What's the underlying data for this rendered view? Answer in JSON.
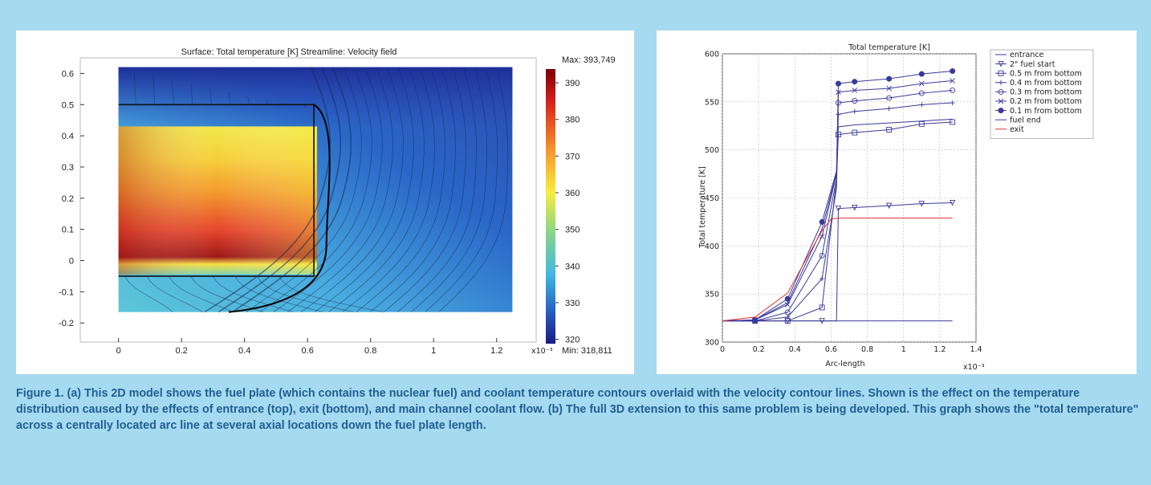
{
  "chart_data": [
    {
      "type": "heatmap",
      "title": "Surface: Total temperature [K]    Streamline: Velocity field",
      "xlabel": "",
      "ylabel": "",
      "x_ticks": [
        "0",
        "0.2",
        "0.4",
        "0.6",
        "0.8",
        "1",
        "1.2"
      ],
      "y_ticks": [
        "-0.2",
        "-0.1",
        "0",
        "0.1",
        "0.2",
        "0.3",
        "0.4",
        "0.5",
        "0.6"
      ],
      "x_exponent": "x10⁻³",
      "xlim": [
        -0.05,
        1.3
      ],
      "ylim": [
        -0.22,
        0.65
      ],
      "colorbar": {
        "max_label": "Max: 393,749",
        "min_label": "Min: 318,811",
        "ticks": [
          "390",
          "380",
          "370",
          "360",
          "350",
          "340",
          "330",
          "320"
        ],
        "range": [
          318.811,
          393.749
        ]
      }
    },
    {
      "type": "line",
      "title": "Total temperature [K]",
      "xlabel": "Arc-length",
      "ylabel": "Total temperature [K]",
      "x_exponent": "x10⁻³",
      "xlim": [
        0,
        1.4
      ],
      "ylim": [
        300,
        600
      ],
      "x_ticks": [
        "0",
        "0.2",
        "0.4",
        "0.6",
        "0.8",
        "1",
        "1.2",
        "1.4"
      ],
      "y_ticks": [
        "300",
        "350",
        "400",
        "450",
        "500",
        "550",
        "600"
      ],
      "grid": true,
      "legend_position": "top-right",
      "series": [
        {
          "name": "entrance",
          "color": "#3a3a9a",
          "marker": "none",
          "x": [
            0,
            0.63,
            0.64,
            1.27
          ],
          "y": [
            322,
            322,
            322,
            322
          ]
        },
        {
          "name": "2\" fuel start",
          "color": "#3a3a9a",
          "marker": "triangle",
          "x": [
            0,
            0.18,
            0.36,
            0.55,
            0.63,
            0.64,
            0.73,
            0.92,
            1.1,
            1.27
          ],
          "y": [
            322,
            322,
            322,
            322,
            322,
            439,
            440,
            442,
            444,
            445
          ]
        },
        {
          "name": "0.5 m from bottom",
          "color": "#3a3a9a",
          "marker": "square",
          "x": [
            0,
            0.18,
            0.36,
            0.55,
            0.63,
            0.64,
            0.73,
            0.92,
            1.1,
            1.27
          ],
          "y": [
            322,
            322,
            322,
            336,
            470,
            516,
            518,
            521,
            527,
            529
          ]
        },
        {
          "name": "0.4 m from bottom",
          "color": "#3a3a9a",
          "marker": "plus",
          "x": [
            0,
            0.18,
            0.36,
            0.55,
            0.63,
            0.64,
            0.73,
            0.92,
            1.1,
            1.27
          ],
          "y": [
            322,
            322,
            326,
            366,
            460,
            537,
            540,
            543,
            547,
            549
          ]
        },
        {
          "name": "0.3 m from bottom",
          "color": "#3a3a9a",
          "marker": "circle",
          "x": [
            0,
            0.18,
            0.36,
            0.55,
            0.63,
            0.64,
            0.73,
            0.92,
            1.1,
            1.27
          ],
          "y": [
            322,
            322,
            331,
            390,
            470,
            549,
            551,
            554,
            559,
            562
          ]
        },
        {
          "name": "0.2 m from bottom",
          "color": "#3a3a9a",
          "marker": "x",
          "x": [
            0,
            0.18,
            0.36,
            0.55,
            0.63,
            0.64,
            0.73,
            0.92,
            1.1,
            1.27
          ],
          "y": [
            322,
            323,
            339,
            410,
            475,
            560,
            562,
            564,
            569,
            572
          ]
        },
        {
          "name": "0.1 m from bottom",
          "color": "#3a3a9a",
          "marker": "filled-circle",
          "x": [
            0,
            0.18,
            0.36,
            0.55,
            0.63,
            0.64,
            0.73,
            0.92,
            1.1,
            1.27
          ],
          "y": [
            322,
            323,
            345,
            425,
            478,
            569,
            571,
            574,
            579,
            582
          ]
        },
        {
          "name": "fuel end",
          "color": "#3a3a9a",
          "marker": "none",
          "x": [
            0,
            0.18,
            0.36,
            0.55,
            0.63,
            0.64,
            0.73,
            0.92,
            1.1,
            1.27
          ],
          "y": [
            322,
            323,
            341,
            418,
            476,
            524,
            526,
            528,
            530,
            532
          ]
        },
        {
          "name": "exit",
          "color": "#e03030",
          "marker": "none",
          "x": [
            0,
            0.18,
            0.36,
            0.45,
            0.55,
            0.6,
            0.64,
            0.73,
            0.92,
            1.1,
            1.27
          ],
          "y": [
            322,
            326,
            351,
            382,
            416,
            428,
            429,
            429,
            429,
            429,
            429
          ]
        }
      ]
    }
  ],
  "caption": "Figure 1. (a) This 2D model shows the fuel plate (which contains the nuclear fuel) and coolant temperature contours overlaid with the velocity contour lines. Shown is the effect on the temperature distribution caused by the effects of entrance (top), exit (bottom), and main channel coolant flow. (b) The full 3D extension to this same problem is being developed. This graph shows the \"total temperature\" across a centrally located arc line at several axial locations down the fuel plate length."
}
